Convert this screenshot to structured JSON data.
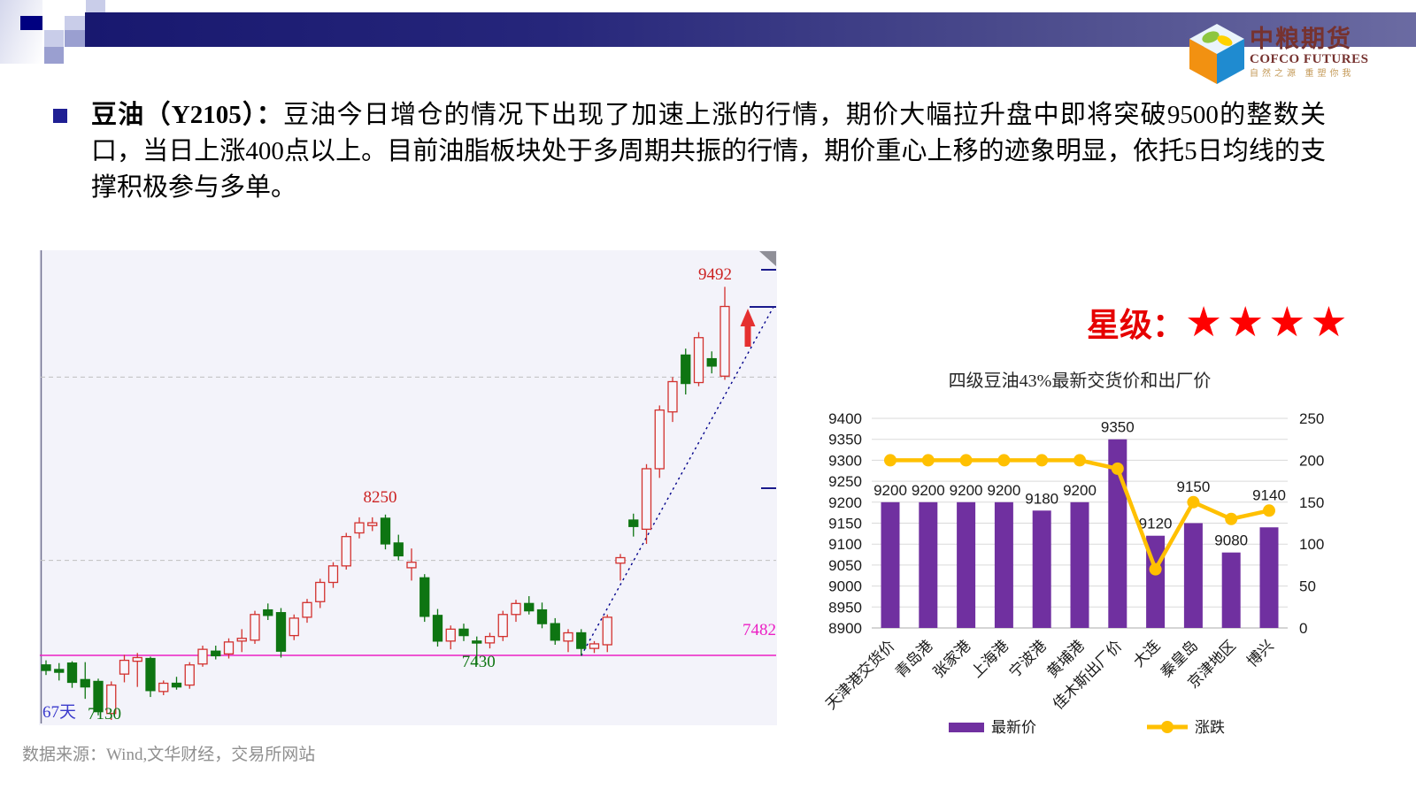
{
  "slide": {
    "logo": {
      "name_cn": "中粮期货",
      "name_en": "COFCO FUTURES",
      "tagline": "自然之源 重塑你我"
    },
    "bullet": {
      "lead": "豆油（Y2105）：",
      "body": "豆油今日增仓的情况下出现了加速上涨的行情，期价大幅拉升盘中即将突破9500的整数关口，当日上涨400点以上。目前油脂板块处于多周期共振的行情，期价重心上移的迹象明显，依托5日均线的支撑积极参与多单。"
    },
    "star_rating": {
      "label": "星级：",
      "stars": "★★★★",
      "color": "#FF0000"
    },
    "footer": "数据来源：Wind,文华财经，交易所网站"
  },
  "chart_data": [
    {
      "type": "candlestick",
      "description": "豆油Y2105 日K线",
      "ylim": [
        7100,
        9700
      ],
      "gridlines": [
        8000,
        9000
      ],
      "support_line": {
        "price": 7482,
        "label": "7482",
        "color": "#EC1FC4"
      },
      "up_color": "#D2312E",
      "down_color": "#0E7512",
      "annotations": {
        "high": {
          "label": "9492",
          "color": "#CC2222"
        },
        "peak": {
          "label": "8250",
          "color": "#CC2222"
        },
        "pullback_low": {
          "label": "7430",
          "color": "#0E7512"
        },
        "low": {
          "label": "7130",
          "color": "#0E7512"
        },
        "days": {
          "label": "67天",
          "color": "#3A3ACC"
        }
      },
      "candles": [
        [
          7430,
          7455,
          7375,
          7400
        ],
        [
          7405,
          7440,
          7345,
          7390
        ],
        [
          7440,
          7450,
          7305,
          7335
        ],
        [
          7350,
          7445,
          7245,
          7310
        ],
        [
          7340,
          7355,
          7155,
          7175
        ],
        [
          7165,
          7340,
          7130,
          7320
        ],
        [
          7380,
          7485,
          7335,
          7455
        ],
        [
          7450,
          7495,
          7310,
          7470
        ],
        [
          7465,
          7475,
          7255,
          7290
        ],
        [
          7285,
          7345,
          7265,
          7330
        ],
        [
          7330,
          7365,
          7295,
          7310
        ],
        [
          7320,
          7445,
          7300,
          7430
        ],
        [
          7435,
          7535,
          7420,
          7515
        ],
        [
          7505,
          7535,
          7460,
          7480
        ],
        [
          7490,
          7575,
          7465,
          7555
        ],
        [
          7560,
          7625,
          7500,
          7575
        ],
        [
          7565,
          7725,
          7545,
          7705
        ],
        [
          7730,
          7765,
          7675,
          7700
        ],
        [
          7715,
          7740,
          7470,
          7505
        ],
        [
          7590,
          7705,
          7565,
          7685
        ],
        [
          7690,
          7790,
          7660,
          7770
        ],
        [
          7775,
          7900,
          7740,
          7880
        ],
        [
          7880,
          7990,
          7850,
          7970
        ],
        [
          7970,
          8150,
          7950,
          8130
        ],
        [
          8150,
          8235,
          8120,
          8205
        ],
        [
          8190,
          8235,
          8160,
          8205
        ],
        [
          8230,
          8250,
          8060,
          8090
        ],
        [
          8095,
          8140,
          8000,
          8025
        ],
        [
          7960,
          8065,
          7890,
          7990
        ],
        [
          7905,
          7925,
          7665,
          7695
        ],
        [
          7700,
          7735,
          7530,
          7560
        ],
        [
          7560,
          7645,
          7515,
          7625
        ],
        [
          7625,
          7655,
          7560,
          7590
        ],
        [
          7560,
          7585,
          7430,
          7550
        ],
        [
          7550,
          7605,
          7520,
          7585
        ],
        [
          7585,
          7725,
          7560,
          7705
        ],
        [
          7705,
          7785,
          7665,
          7765
        ],
        [
          7765,
          7805,
          7705,
          7725
        ],
        [
          7730,
          7770,
          7630,
          7655
        ],
        [
          7655,
          7685,
          7540,
          7565
        ],
        [
          7560,
          7625,
          7500,
          7605
        ],
        [
          7605,
          7625,
          7480,
          7520
        ],
        [
          7520,
          7560,
          7495,
          7545
        ],
        [
          7540,
          7705,
          7500,
          7690
        ],
        [
          7985,
          8035,
          7890,
          8015
        ],
        [
          8220,
          8255,
          8130,
          8185
        ],
        [
          8170,
          8525,
          8090,
          8500
        ],
        [
          8500,
          8845,
          8450,
          8820
        ],
        [
          8810,
          9000,
          8755,
          8975
        ],
        [
          9120,
          9155,
          8905,
          8965
        ],
        [
          8970,
          9245,
          8950,
          9215
        ],
        [
          9100,
          9140,
          9020,
          9060
        ],
        [
          9005,
          9492,
          8985,
          9385
        ]
      ]
    },
    {
      "type": "bar+line",
      "title": "四级豆油43%最新交货价和出厂价",
      "categories": [
        "天津港交货价",
        "青岛港",
        "张家港",
        "上海港",
        "宁波港",
        "黄埔港",
        "佳木斯出厂价",
        "大连",
        "秦皇岛",
        "京津地区",
        "博兴"
      ],
      "series": [
        {
          "name": "最新价",
          "chart": "bar",
          "axis": "left",
          "color": "#7030A0",
          "values": [
            9200,
            9200,
            9200,
            9200,
            9180,
            9200,
            9350,
            9120,
            9150,
            9080,
            9140
          ]
        },
        {
          "name": "涨跌",
          "chart": "line",
          "axis": "right",
          "color": "#FFC000",
          "values": [
            200,
            200,
            200,
            200,
            200,
            200,
            190,
            70,
            150,
            130,
            140
          ]
        }
      ],
      "bar_labels": [
        "9200",
        "9200",
        "9200",
        "9200",
        "9180",
        "9200",
        "9350",
        "9120",
        "9150",
        "9080",
        "9140"
      ],
      "left_axis": {
        "min": 8900,
        "max": 9400,
        "step": 50
      },
      "right_axis": {
        "min": 0,
        "max": 250,
        "step": 50
      },
      "legend": [
        "最新价",
        "涨跌"
      ],
      "grid": true,
      "legend_position": "bottom"
    }
  ]
}
